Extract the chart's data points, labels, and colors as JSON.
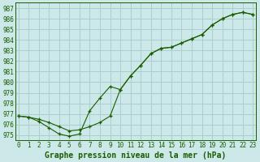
{
  "title": "Graphe pression niveau de la mer (hPa)",
  "bg_color": "#cce8e8",
  "grid_color": "#aacfcf",
  "line_color": "#1a5c00",
  "ylim": [
    974.5,
    987.5
  ],
  "xlim": [
    -0.3,
    23.3
  ],
  "yticks": [
    975,
    976,
    977,
    978,
    979,
    980,
    981,
    982,
    983,
    984,
    985,
    986,
    987
  ],
  "xticks": [
    0,
    1,
    2,
    3,
    4,
    5,
    6,
    7,
    8,
    9,
    10,
    11,
    12,
    13,
    14,
    15,
    16,
    17,
    18,
    19,
    20,
    21,
    22,
    23
  ],
  "series1_x": [
    0,
    1,
    2,
    3,
    4,
    5,
    6,
    7,
    8,
    9,
    10,
    11,
    12,
    13,
    14,
    15,
    16,
    17,
    18,
    19,
    20,
    21,
    22,
    23
  ],
  "series1_y": [
    976.8,
    976.7,
    976.5,
    976.2,
    975.8,
    975.4,
    975.5,
    975.8,
    976.2,
    976.8,
    979.3,
    980.6,
    981.6,
    982.7,
    983.2,
    983.3,
    983.7,
    984.1,
    984.5,
    985.4,
    986.0,
    986.4,
    986.6,
    986.4
  ],
  "series2_x": [
    0,
    1,
    2,
    3,
    4,
    5,
    6,
    7,
    8,
    9,
    10,
    11,
    12,
    13,
    14,
    15,
    16,
    17,
    18,
    19,
    20,
    21,
    22,
    23
  ],
  "series2_y": [
    976.8,
    976.7,
    976.3,
    975.7,
    975.1,
    974.9,
    975.1,
    977.3,
    978.5,
    979.6,
    979.3,
    980.6,
    981.6,
    982.7,
    983.2,
    983.3,
    983.7,
    984.1,
    984.5,
    985.4,
    986.0,
    986.4,
    986.6,
    986.4
  ],
  "xlabel_fontsize": 5.5,
  "ylabel_fontsize": 5.5,
  "title_fontsize": 7.0,
  "marker": "+"
}
